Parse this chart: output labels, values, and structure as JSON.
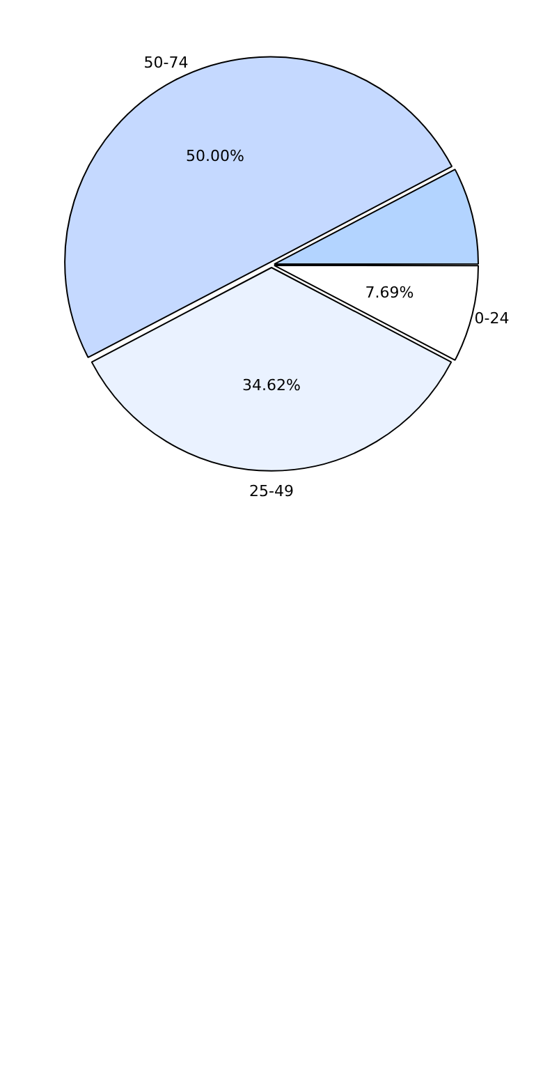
{
  "chart_data": {
    "type": "pie",
    "categories": [
      "0-24",
      "25-49",
      "50-74",
      null
    ],
    "values": [
      7.69,
      34.62,
      50.0,
      7.69
    ],
    "value_labels": [
      "7.69%",
      "34.62%",
      "50.00%",
      null
    ],
    "colors": [
      "#ffffff",
      "#eaf2ff",
      "#c5d9ff",
      "#b3d4ff"
    ],
    "legend": false
  }
}
